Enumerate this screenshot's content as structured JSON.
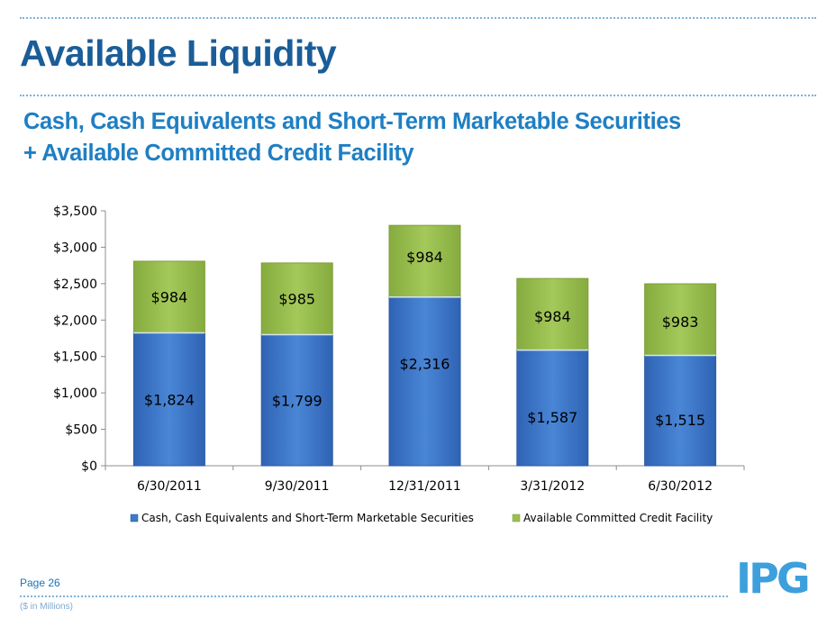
{
  "slide": {
    "title": "Available Liquidity",
    "subtitle_line1": "Cash, Cash Equivalents and Short-Term Marketable Securities",
    "subtitle_line2": "+ Available Committed Credit Facility",
    "page_label": "Page 26",
    "units_note": "($ in Millions)",
    "logo_text": "IPG"
  },
  "chart_data": {
    "type": "bar",
    "stacked": true,
    "categories": [
      "6/30/2011",
      "9/30/2011",
      "12/31/2011",
      "3/31/2012",
      "6/30/2012"
    ],
    "series": [
      {
        "name": "Cash, Cash Equivalents and Short-Term Marketable Securities",
        "values": [
          1824,
          1799,
          2316,
          1587,
          1515
        ],
        "labels": [
          "$1,824",
          "$1,799",
          "$2,316",
          "$1,587",
          "$1,515"
        ],
        "color": "#3f78c8"
      },
      {
        "name": "Available Committed Credit Facility",
        "values": [
          984,
          985,
          984,
          984,
          983
        ],
        "labels": [
          "$984",
          "$985",
          "$984",
          "$984",
          "$983"
        ],
        "color": "#9bbf4f"
      }
    ],
    "yticks": [
      "$0",
      "$500",
      "$1,000",
      "$1,500",
      "$2,000",
      "$2,500",
      "$3,000",
      "$3,500"
    ],
    "ylim": [
      0,
      3500
    ],
    "grid": false,
    "legend_position": "bottom"
  }
}
